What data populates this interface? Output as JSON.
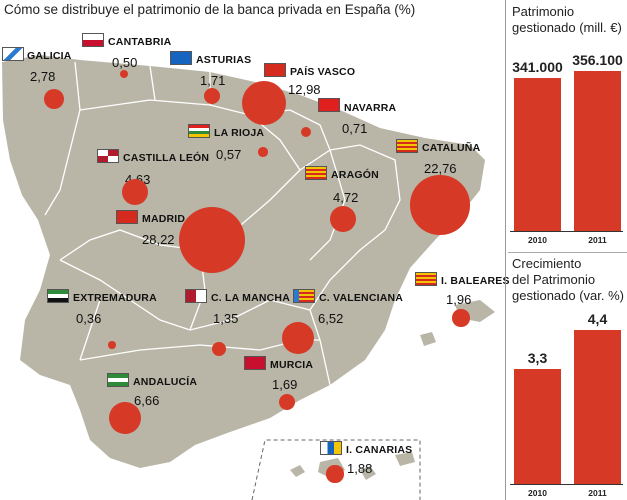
{
  "title": "Cómo se distribuye el patrimonio de la banca privada en España (%)",
  "regions": [
    {
      "name": "GALICIA",
      "value": "2,78",
      "flag": "galicia-flag"
    },
    {
      "name": "CANTABRIA",
      "value": "0,50",
      "flag": "cantabria-flag"
    },
    {
      "name": "ASTURIAS",
      "value": "1,71",
      "flag": "asturias-flag"
    },
    {
      "name": "PAÍS VASCO",
      "value": "12,98",
      "flag": "pais-vasco-flag"
    },
    {
      "name": "NAVARRA",
      "value": "0,71",
      "flag": "navarra-flag"
    },
    {
      "name": "LA RIOJA",
      "value": "0,57",
      "flag": "la-rioja-flag"
    },
    {
      "name": "CASTILLA LEÓN",
      "value": "4,63",
      "flag": "castilla-leon-flag"
    },
    {
      "name": "CATALUÑA",
      "value": "22,76",
      "flag": "cataluna-flag"
    },
    {
      "name": "ARAGÓN",
      "value": "4,72",
      "flag": "aragon-flag"
    },
    {
      "name": "MADRID",
      "value": "28,22",
      "flag": "madrid-flag"
    },
    {
      "name": "I. BALEARES",
      "value": "1,96",
      "flag": "baleares-flag"
    },
    {
      "name": "EXTREMADURA",
      "value": "0,36",
      "flag": "extremadura-flag"
    },
    {
      "name": "C. LA MANCHA",
      "value": "1,35",
      "flag": "castilla-la-mancha-flag"
    },
    {
      "name": "C. VALENCIANA",
      "value": "6,52",
      "flag": "valencia-flag"
    },
    {
      "name": "ANDALUCÍA",
      "value": "6,66",
      "flag": "andalucia-flag"
    },
    {
      "name": "MURCIA",
      "value": "1,69",
      "flag": "murcia-flag"
    },
    {
      "name": "I. CANARIAS",
      "value": "1,88",
      "flag": "canarias-flag"
    }
  ],
  "colors": {
    "bubble": "#d63a26",
    "land": "#b9b6a7",
    "border": "#ffffff",
    "bar": "#d63a26"
  },
  "panel_patrimonio": {
    "title": "Patrimonio\ngestionado (mill. €)",
    "bars": [
      {
        "label": "2010",
        "value": 341000,
        "display": "341.000"
      },
      {
        "label": "2011",
        "value": 356100,
        "display": "356.100"
      }
    ]
  },
  "panel_crecimiento": {
    "title": "Crecimiento\ndel Patrimonio\ngestionado (var. %)",
    "bars": [
      {
        "label": "2010",
        "value": 3.3,
        "display": "3,3"
      },
      {
        "label": "2011",
        "value": 4.4,
        "display": "4,4"
      }
    ]
  }
}
